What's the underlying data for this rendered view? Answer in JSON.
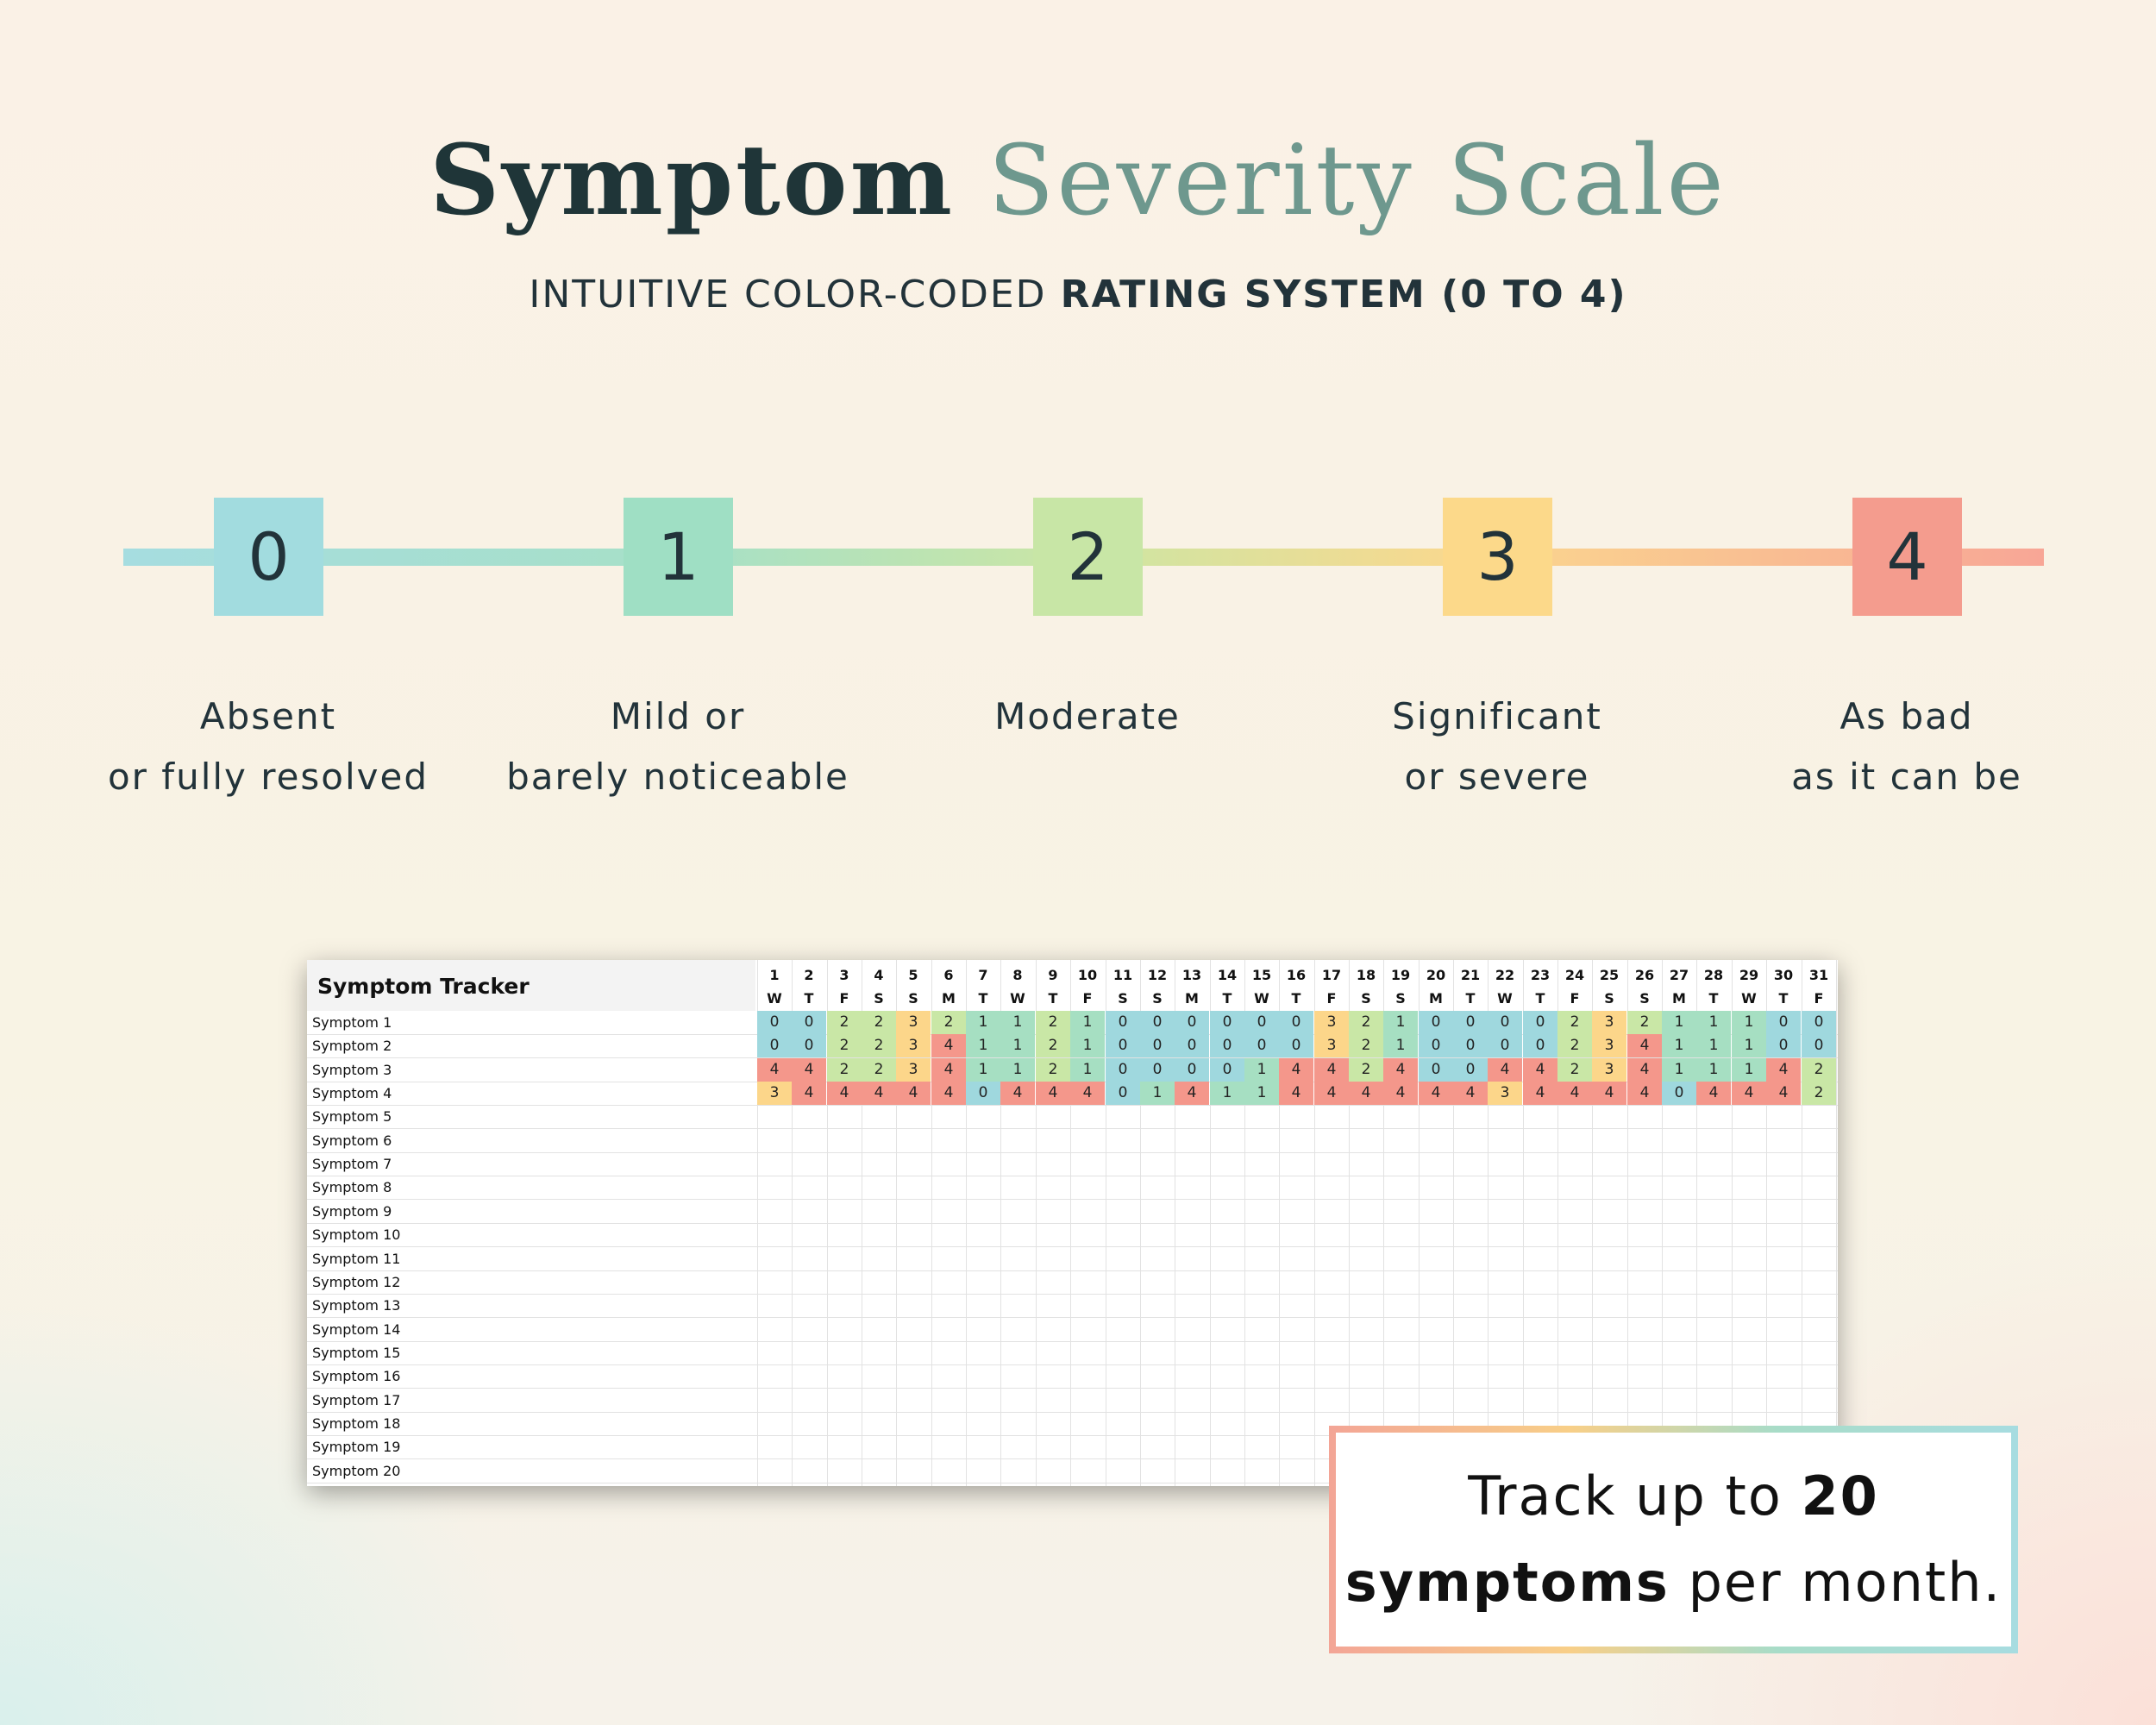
{
  "header": {
    "title_part1": "Symptom",
    "title_part2": "Severity Scale",
    "subtitle_normal": "INTUITIVE COLOR-CODED",
    "subtitle_bold": "RATING SYSTEM (0 TO 4)"
  },
  "scale": {
    "levels": [
      {
        "value": "0",
        "line1": "Absent",
        "line2": "or fully resolved",
        "color": "#a2dcdf"
      },
      {
        "value": "1",
        "line1": "Mild or",
        "line2": "barely noticeable",
        "color": "#9fdfc4"
      },
      {
        "value": "2",
        "line1": "Moderate",
        "line2": "",
        "color": "#c8e6a6"
      },
      {
        "value": "3",
        "line1": "Significant",
        "line2": "or severe",
        "color": "#fcd98a"
      },
      {
        "value": "4",
        "line1": "As bad",
        "line2": "as it can be",
        "color": "#f49c8e"
      }
    ]
  },
  "tracker": {
    "title": "Symptom Tracker",
    "days": [
      "1",
      "2",
      "3",
      "4",
      "5",
      "6",
      "7",
      "8",
      "9",
      "10",
      "11",
      "12",
      "13",
      "14",
      "15",
      "16",
      "17",
      "18",
      "19",
      "20",
      "21",
      "22",
      "23",
      "24",
      "25",
      "26",
      "27",
      "28",
      "29",
      "30",
      "31"
    ],
    "weekdays": [
      "W",
      "T",
      "F",
      "S",
      "S",
      "M",
      "T",
      "W",
      "T",
      "F",
      "S",
      "S",
      "M",
      "T",
      "W",
      "T",
      "F",
      "S",
      "S",
      "M",
      "T",
      "W",
      "T",
      "F",
      "S",
      "S",
      "M",
      "T",
      "W",
      "T",
      "F"
    ],
    "symptoms": [
      "Symptom 1",
      "Symptom 2",
      "Symptom 3",
      "Symptom 4",
      "Symptom 5",
      "Symptom 6",
      "Symptom 7",
      "Symptom 8",
      "Symptom 9",
      "Symptom 10",
      "Symptom 11",
      "Symptom 12",
      "Symptom 13",
      "Symptom 14",
      "Symptom 15",
      "Symptom 16",
      "Symptom 17",
      "Symptom 18",
      "Symptom 19",
      "Symptom 20"
    ],
    "ratings": [
      [
        0,
        0,
        2,
        2,
        3,
        2,
        1,
        1,
        2,
        1,
        0,
        0,
        0,
        0,
        0,
        0,
        3,
        2,
        1,
        0,
        0,
        0,
        0,
        2,
        3,
        2,
        1,
        1,
        1,
        0,
        0
      ],
      [
        0,
        0,
        2,
        2,
        3,
        4,
        1,
        1,
        2,
        1,
        0,
        0,
        0,
        0,
        0,
        0,
        3,
        2,
        1,
        0,
        0,
        0,
        0,
        2,
        3,
        4,
        1,
        1,
        1,
        0,
        0
      ],
      [
        4,
        4,
        2,
        2,
        3,
        4,
        1,
        1,
        2,
        1,
        0,
        0,
        0,
        0,
        1,
        4,
        4,
        2,
        4,
        0,
        0,
        4,
        4,
        2,
        3,
        4,
        1,
        1,
        1,
        4,
        2
      ],
      [
        3,
        4,
        4,
        4,
        4,
        4,
        0,
        4,
        4,
        4,
        0,
        1,
        4,
        1,
        1,
        4,
        4,
        4,
        4,
        4,
        4,
        3,
        4,
        4,
        4,
        4,
        0,
        4,
        4,
        4,
        2
      ]
    ],
    "rating_colors": {
      "0": "#9fd8de",
      "1": "#a6dfc2",
      "2": "#c9e7a6",
      "3": "#fcd68a",
      "4": "#f4978b"
    }
  },
  "callout": {
    "text1": "Track up to",
    "bold1": "20",
    "bold2": "symptoms",
    "text2": "per month."
  }
}
